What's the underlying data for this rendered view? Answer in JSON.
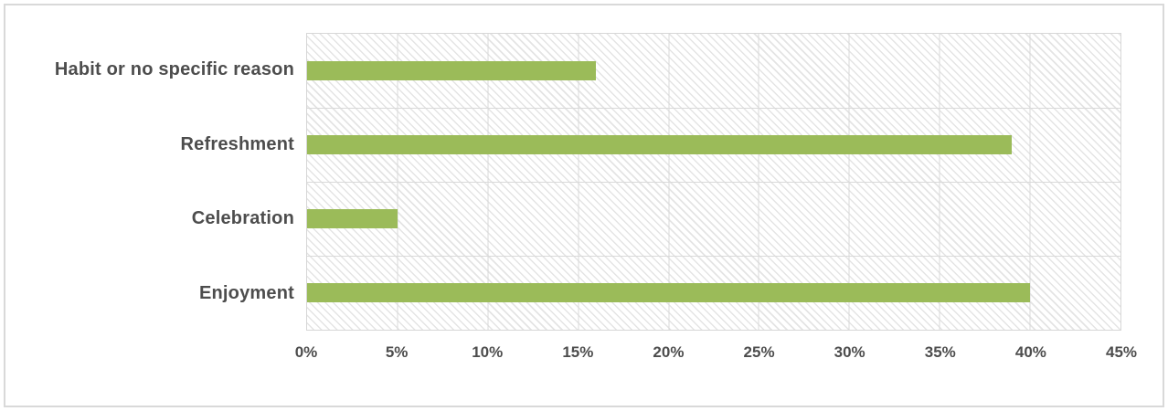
{
  "chart_data": {
    "type": "bar",
    "orientation": "horizontal",
    "title": "",
    "xlabel": "",
    "ylabel": "",
    "categories": [
      "Habit or no specific reason",
      "Refreshment",
      "Celebration",
      "Enjoyment"
    ],
    "values": [
      16,
      39,
      5,
      40
    ],
    "unit": "%",
    "x_ticks": [
      "0%",
      "5%",
      "10%",
      "15%",
      "20%",
      "25%",
      "30%",
      "35%",
      "40%",
      "45%"
    ],
    "xlim": [
      0,
      45
    ],
    "grid": "on",
    "legend_position": "none",
    "bar_color": "#9bbb59",
    "gridline_color": "#d9d9d9",
    "axis_text_color": "#4d4d4d",
    "plot_background_pattern": "light-downward-diagonal-hatch",
    "frame_border_color": "#d9d9d9"
  }
}
